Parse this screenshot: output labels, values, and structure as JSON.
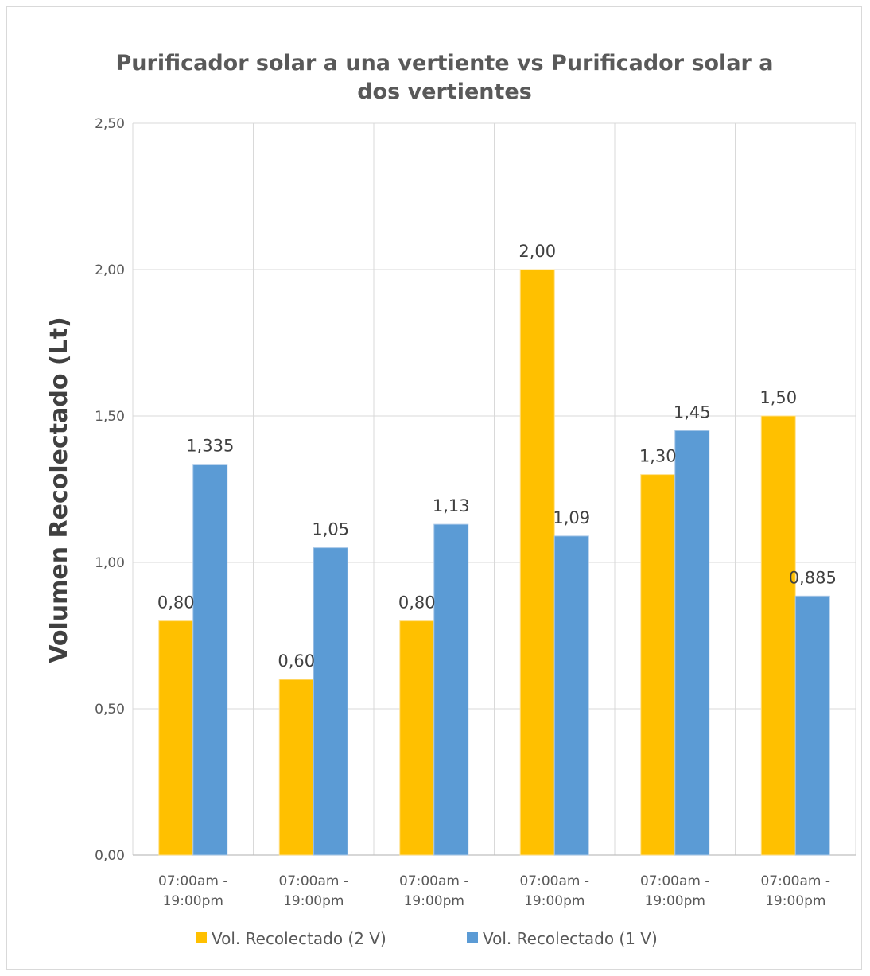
{
  "chart_data": {
    "type": "bar",
    "title_lines": [
      "Purificador solar a una vertiente vs Purificador solar a",
      "dos vertientes"
    ],
    "xlabel": "",
    "ylabel": "Volumen Recolectado (Lt)",
    "ylim": [
      0,
      2.5
    ],
    "y_ticks": [
      "0,00",
      "0,50",
      "1,00",
      "1,50",
      "2,00",
      "2,50"
    ],
    "y_tick_values": [
      0,
      0.5,
      1,
      1.5,
      2,
      2.5
    ],
    "categories": [
      [
        "07:00am -",
        "19:00pm"
      ],
      [
        "07:00am -",
        "19:00pm"
      ],
      [
        "07:00am -",
        "19:00pm"
      ],
      [
        "07:00am -",
        "19:00pm"
      ],
      [
        "07:00am -",
        "19:00pm"
      ],
      [
        "07:00am -",
        "19:00pm"
      ]
    ],
    "series": [
      {
        "name": "Vol. Recolectado  (2 V)",
        "color": "#ffc000",
        "values": [
          0.8,
          0.6,
          0.8,
          2.0,
          1.3,
          1.5
        ],
        "labels": [
          "0,80",
          "0,60",
          "0,80",
          "2,00",
          "1,30",
          "1,50"
        ]
      },
      {
        "name": "Vol.  Recolectado (1 V)",
        "color": "#5b9bd5",
        "values": [
          1.335,
          1.05,
          1.13,
          1.09,
          1.45,
          0.885
        ],
        "labels": [
          "1,335",
          "1,05",
          "1,13",
          "1,09",
          "1,45",
          "0,885"
        ]
      }
    ],
    "grid": true,
    "legend_position": "bottom"
  }
}
